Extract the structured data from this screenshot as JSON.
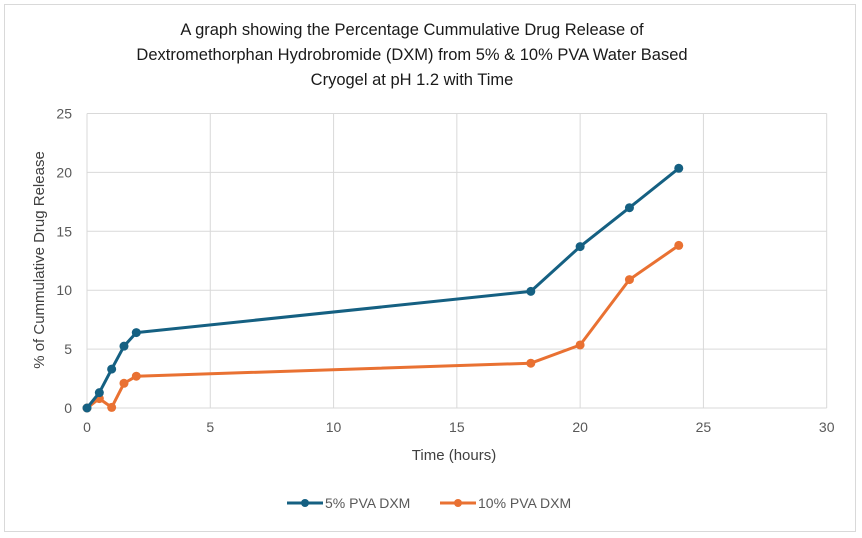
{
  "chart_data": {
    "type": "line",
    "title": [
      "A graph showing the Percentage Cummulative Drug Release of",
      "Dextromethorphan Hydrobromide (DXM) from 5% & 10% PVA Water Based",
      "Cryogel at pH 1.2 with Time"
    ],
    "xlabel": "Time (hours)",
    "ylabel": "% of Cummulative Drug Release",
    "xlim": [
      0,
      30
    ],
    "ylim": [
      0,
      25
    ],
    "xticks": [
      0,
      5,
      10,
      15,
      20,
      25,
      30
    ],
    "yticks": [
      0,
      5,
      10,
      15,
      20,
      25
    ],
    "grid": true,
    "legend_position": "bottom",
    "series": [
      {
        "name": "5% PVA DXM",
        "color": "#156082",
        "x": [
          0,
          0.5,
          1,
          1.5,
          2,
          18,
          20,
          22,
          24
        ],
        "y": [
          0,
          1.3,
          3.3,
          5.25,
          6.4,
          9.9,
          13.7,
          17.0,
          20.35
        ]
      },
      {
        "name": "10% PVA DXM",
        "color": "#E97132",
        "x": [
          0,
          0.5,
          1,
          1.5,
          2,
          18,
          20,
          22,
          24
        ],
        "y": [
          0,
          0.8,
          0.05,
          2.1,
          2.7,
          3.8,
          5.35,
          10.9,
          13.8
        ]
      }
    ]
  }
}
